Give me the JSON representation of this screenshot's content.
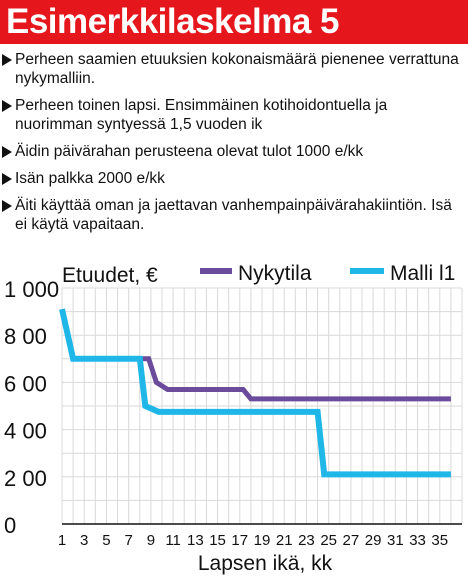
{
  "header": {
    "title": "Esimerkkilaskelma 5"
  },
  "bullets": [
    "Perheen saamien etuuksien kokonaismäärä pienenee verrattuna nykymalliin.",
    "Perheen toinen lapsi. Ensimmäinen kotihoidontuella ja nuorimman syntyessä 1,5 vuoden ik",
    "Äidin päivärahan perusteena olevat tulot 1000 e/kk",
    "Isän palkka 2000 e/kk",
    "Äiti käyttää oman ja jaettavan vanhempainpäivärahakiintiön. Isä ei käytä vapaitaan."
  ],
  "colors": {
    "header_bg": "#e6161d",
    "nykytila": "#6a4b9c",
    "malli": "#1fb7e8",
    "grid": "#d9d9d9"
  },
  "chart_data": {
    "type": "line",
    "ylabel": "Etuudet, €",
    "xlabel": "Lapsen ikä, kk",
    "ylim": [
      0,
      1000
    ],
    "xlim": [
      1,
      36
    ],
    "yticks": [
      0,
      200,
      400,
      600,
      800,
      1000
    ],
    "ytick_labels": [
      "0",
      "2 00",
      "4 00",
      "6 00",
      "8 00",
      "1 000"
    ],
    "xticks": [
      1,
      3,
      5,
      7,
      9,
      11,
      13,
      15,
      17,
      19,
      21,
      23,
      25,
      27,
      29,
      31,
      33,
      35
    ],
    "grid": true,
    "legend_placement": "top",
    "series": [
      {
        "name": "Nykytila",
        "color": "#6a4b9c",
        "points": [
          [
            1,
            910
          ],
          [
            2,
            700
          ],
          [
            8.8,
            700
          ],
          [
            9.5,
            600
          ],
          [
            10.5,
            570
          ],
          [
            17.3,
            570
          ],
          [
            18,
            530
          ],
          [
            36,
            530
          ]
        ]
      },
      {
        "name": "Malli l1",
        "color": "#1fb7e8",
        "points": [
          [
            1,
            910
          ],
          [
            2,
            700
          ],
          [
            8,
            700
          ],
          [
            8.5,
            500
          ],
          [
            9.7,
            475
          ],
          [
            24,
            475
          ],
          [
            24.6,
            210
          ],
          [
            36,
            210
          ]
        ]
      }
    ]
  }
}
